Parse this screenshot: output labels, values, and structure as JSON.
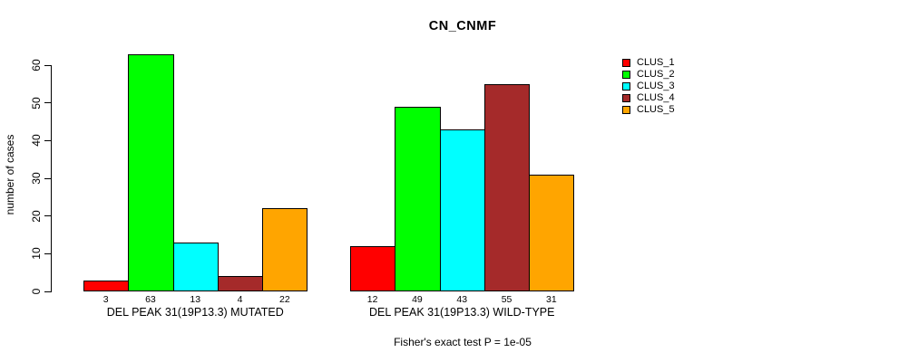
{
  "title": "CN_CNMF",
  "ylabel": "number of cases",
  "footer": "Fisher's exact test P = 1e-05",
  "chart_data": {
    "type": "bar",
    "title": "CN_CNMF",
    "ylabel": "number of cases",
    "xlabel": "",
    "ylim": [
      0,
      63
    ],
    "yticks": [
      0,
      10,
      20,
      30,
      40,
      50,
      60
    ],
    "grid": false,
    "legend_position": "right",
    "series": [
      {
        "name": "CLUS_1",
        "color": "#FF0000"
      },
      {
        "name": "CLUS_2",
        "color": "#00FF00"
      },
      {
        "name": "CLUS_3",
        "color": "#00FFFF"
      },
      {
        "name": "CLUS_4",
        "color": "#A52A2A"
      },
      {
        "name": "CLUS_5",
        "color": "#FFA500"
      }
    ],
    "groups": [
      {
        "label": "DEL PEAK 31(19P13.3) MUTATED",
        "values": [
          3,
          63,
          13,
          4,
          22
        ]
      },
      {
        "label": "DEL PEAK 31(19P13.3) WILD-TYPE",
        "values": [
          12,
          49,
          43,
          55,
          31
        ]
      }
    ],
    "annotation": "Fisher's exact test P = 1e-05"
  }
}
